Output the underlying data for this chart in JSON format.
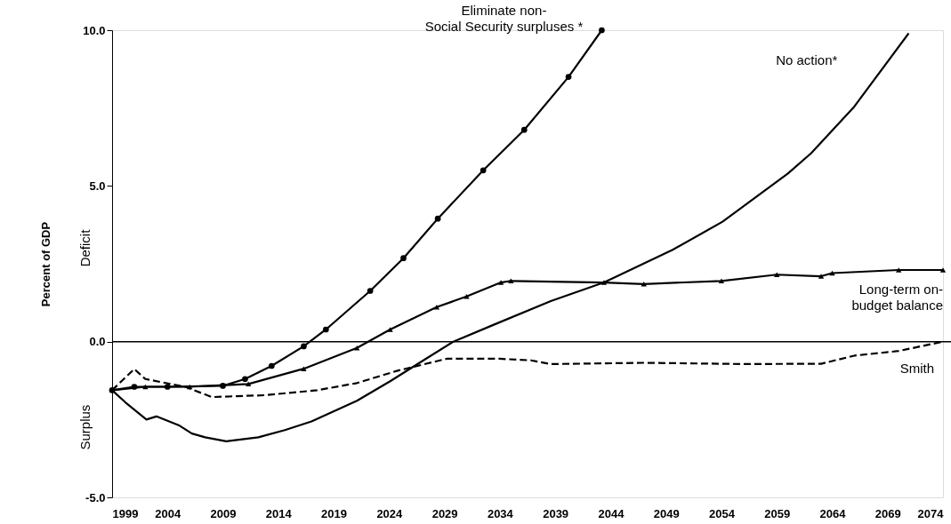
{
  "chart_data": {
    "type": "line",
    "ylabel": "Percent of GDP",
    "annotations": [
      "Deficit",
      "Surplus"
    ],
    "xlim": [
      1999,
      2074
    ],
    "xticks": [
      1999,
      2004,
      2009,
      2014,
      2019,
      2024,
      2029,
      2034,
      2039,
      2044,
      2049,
      2054,
      2059,
      2064,
      2069,
      2074
    ],
    "ylim": [
      -5,
      10
    ],
    "yticks": [
      {
        "value": -5,
        "label": "-5.0"
      },
      {
        "value": 0,
        "label": "0.0"
      },
      {
        "value": 5,
        "label": "5.0"
      },
      {
        "value": 10,
        "label": "10.0"
      }
    ],
    "grid": false,
    "ref_lines": [
      {
        "axis": "y",
        "value": 0,
        "color": "#000000"
      }
    ],
    "series": [
      {
        "name": "Eliminate non-Social Security surpluses *",
        "color": "#000000",
        "marker": "circle",
        "line_style": "solid",
        "x": [
          1999,
          2001,
          2004,
          2009,
          2011,
          2013.4,
          2016.3,
          2018.3,
          2022.3,
          2025.3,
          2028.4,
          2032.5,
          2036.2,
          2040.2,
          2043.2
        ],
        "values": [
          -1.56,
          -1.45,
          -1.45,
          -1.42,
          -1.2,
          -0.78,
          -0.15,
          0.39,
          1.63,
          2.68,
          3.95,
          5.5,
          6.8,
          8.5,
          10.0
        ]
      },
      {
        "name": "No action*",
        "color": "#000000",
        "marker": "none",
        "line_style": "solid",
        "x": [
          1999,
          2000.2,
          2002.1,
          2003,
          2005.1,
          2006.2,
          2007.4,
          2009.3,
          2012.2,
          2014.6,
          2017,
          2021.1,
          2024.1,
          2027.1,
          2029.8,
          2033.5,
          2038.6,
          2043.4,
          2049.6,
          2054.1,
          2060,
          2062.1,
          2066,
          2070.9
        ],
        "values": [
          -1.56,
          -1.95,
          -2.5,
          -2.4,
          -2.7,
          -2.95,
          -3.07,
          -3.2,
          -3.07,
          -2.84,
          -2.56,
          -1.9,
          -1.27,
          -0.6,
          0,
          0.55,
          1.3,
          1.9,
          2.95,
          3.85,
          5.4,
          6.05,
          7.55,
          9.9
        ]
      },
      {
        "name": "Long-term on-budget balance",
        "color": "#000000",
        "marker": "triangle",
        "line_style": "solid",
        "x": [
          1999,
          2002,
          2006,
          2011.3,
          2016.3,
          2021.1,
          2024.1,
          2028.3,
          2031,
          2034.1,
          2035,
          2043.4,
          2047,
          2054,
          2059,
          2063,
          2064,
          2070,
          2074
        ],
        "values": [
          -1.56,
          -1.45,
          -1.45,
          -1.36,
          -0.87,
          -0.2,
          0.39,
          1.11,
          1.45,
          1.9,
          1.95,
          1.9,
          1.85,
          1.95,
          2.15,
          2.1,
          2.2,
          2.3,
          2.3
        ]
      },
      {
        "name": "Smith",
        "color": "#000000",
        "marker": "none",
        "line_style": "dashed",
        "x": [
          1999,
          2001,
          2002,
          2005.6,
          2008,
          2012.8,
          2017.5,
          2021.1,
          2024.7,
          2029.2,
          2034,
          2036.8,
          2038.6,
          2047,
          2056,
          2063,
          2066,
          2070,
          2074
        ],
        "values": [
          -1.56,
          -0.88,
          -1.2,
          -1.45,
          -1.78,
          -1.72,
          -1.56,
          -1.33,
          -0.94,
          -0.55,
          -0.55,
          -0.6,
          -0.72,
          -0.68,
          -0.72,
          -0.71,
          -0.45,
          -0.3,
          0
        ]
      }
    ]
  }
}
